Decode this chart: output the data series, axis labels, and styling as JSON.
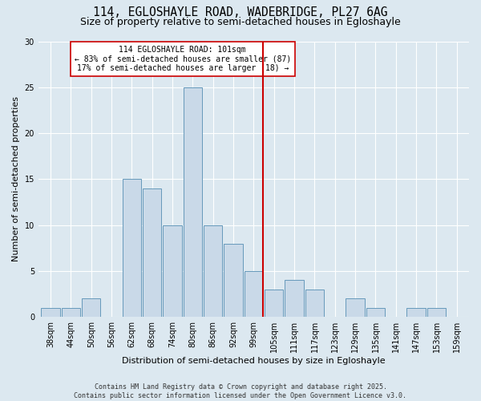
{
  "title1": "114, EGLOSHAYLE ROAD, WADEBRIDGE, PL27 6AG",
  "title2": "Size of property relative to semi-detached houses in Egloshayle",
  "xlabel": "Distribution of semi-detached houses by size in Egloshayle",
  "ylabel": "Number of semi-detached properties",
  "categories": [
    "38sqm",
    "44sqm",
    "50sqm",
    "56sqm",
    "62sqm",
    "68sqm",
    "74sqm",
    "80sqm",
    "86sqm",
    "92sqm",
    "99sqm",
    "105sqm",
    "111sqm",
    "117sqm",
    "123sqm",
    "129sqm",
    "135sqm",
    "141sqm",
    "147sqm",
    "153sqm",
    "159sqm"
  ],
  "bar_values": [
    1,
    1,
    2,
    0,
    15,
    14,
    10,
    25,
    10,
    8,
    5,
    3,
    4,
    3,
    0,
    2,
    1,
    0,
    1,
    1,
    0
  ],
  "bar_color": "#c9d9e8",
  "bar_edge_color": "#6699bb",
  "reference_bar_index": 10,
  "reference_line_color": "#cc0000",
  "annotation_text": "114 EGLOSHAYLE ROAD: 101sqm\n← 83% of semi-detached houses are smaller (87)\n17% of semi-detached houses are larger (18) →",
  "annotation_box_color": "#ffffff",
  "annotation_box_edge": "#cc0000",
  "ylim": [
    0,
    30
  ],
  "yticks": [
    0,
    5,
    10,
    15,
    20,
    25,
    30
  ],
  "fig_facecolor": "#dce8f0",
  "plot_facecolor": "#dce8f0",
  "footer": "Contains HM Land Registry data © Crown copyright and database right 2025.\nContains public sector information licensed under the Open Government Licence v3.0.",
  "title1_fontsize": 10.5,
  "title2_fontsize": 9,
  "axis_label_fontsize": 8,
  "tick_fontsize": 7,
  "annotation_fontsize": 7,
  "footer_fontsize": 6
}
